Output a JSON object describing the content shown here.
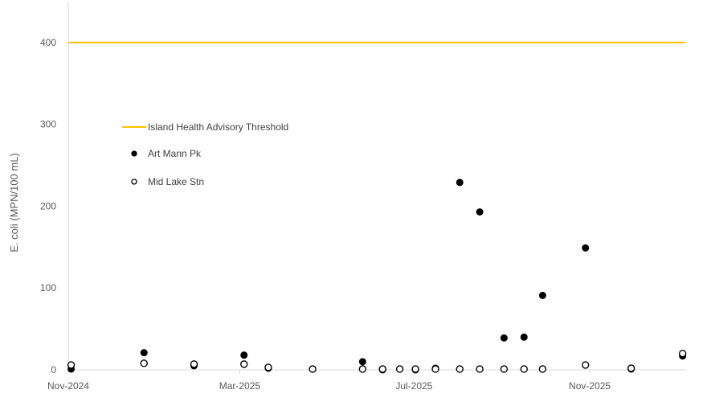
{
  "chart_data": {
    "type": "scatter",
    "title": "",
    "ylabel": "E. coli (MPN/100 mL)",
    "xlabel": "",
    "x_axis_type": "date",
    "xlim": [
      "2024-11-01",
      "2026-01-08"
    ],
    "ylim": [
      0,
      450
    ],
    "y_ticks": [
      0,
      100,
      200,
      300,
      400
    ],
    "x_ticks": [
      {
        "date": "2024-11-01",
        "label": "Nov-2024"
      },
      {
        "date": "2025-03-01",
        "label": "Mar-2025"
      },
      {
        "date": "2025-07-01",
        "label": "Jul-2025"
      },
      {
        "date": "2025-11-01",
        "label": "Nov-2025"
      }
    ],
    "grid": false,
    "legend_position": "upper-left",
    "threshold": {
      "name": "Island Health Advisory Threshold",
      "value": 400,
      "color": "#FFC000"
    },
    "series": [
      {
        "name": "Art Mann Pk",
        "marker": "filled-circle",
        "color": "#000000",
        "points": [
          {
            "x": "2024-11-03",
            "y": 1
          },
          {
            "x": "2024-12-24",
            "y": 21
          },
          {
            "x": "2025-01-28",
            "y": 5
          },
          {
            "x": "2025-03-04",
            "y": 18
          },
          {
            "x": "2025-03-21",
            "y": 2
          },
          {
            "x": "2025-04-21",
            "y": 1
          },
          {
            "x": "2025-05-26",
            "y": 10
          },
          {
            "x": "2025-06-09",
            "y": 0
          },
          {
            "x": "2025-06-21",
            "y": 1
          },
          {
            "x": "2025-07-02",
            "y": 0
          },
          {
            "x": "2025-07-16",
            "y": 2
          },
          {
            "x": "2025-08-02",
            "y": 229
          },
          {
            "x": "2025-08-16",
            "y": 193
          },
          {
            "x": "2025-09-02",
            "y": 39
          },
          {
            "x": "2025-09-16",
            "y": 40
          },
          {
            "x": "2025-09-29",
            "y": 91
          },
          {
            "x": "2025-10-29",
            "y": 149
          },
          {
            "x": "2025-11-30",
            "y": 1
          },
          {
            "x": "2026-01-05",
            "y": 17
          }
        ]
      },
      {
        "name": "Mid Lake Stn",
        "marker": "open-circle",
        "color": "#000000",
        "points": [
          {
            "x": "2024-11-03",
            "y": 6
          },
          {
            "x": "2024-12-24",
            "y": 8
          },
          {
            "x": "2025-01-28",
            "y": 7
          },
          {
            "x": "2025-03-04",
            "y": 7
          },
          {
            "x": "2025-03-21",
            "y": 3
          },
          {
            "x": "2025-04-21",
            "y": 1
          },
          {
            "x": "2025-05-26",
            "y": 1
          },
          {
            "x": "2025-06-09",
            "y": 1
          },
          {
            "x": "2025-06-21",
            "y": 1
          },
          {
            "x": "2025-07-02",
            "y": 1
          },
          {
            "x": "2025-07-16",
            "y": 1
          },
          {
            "x": "2025-08-02",
            "y": 1
          },
          {
            "x": "2025-08-16",
            "y": 1
          },
          {
            "x": "2025-09-02",
            "y": 1
          },
          {
            "x": "2025-09-16",
            "y": 1
          },
          {
            "x": "2025-09-29",
            "y": 1
          },
          {
            "x": "2025-10-29",
            "y": 6
          },
          {
            "x": "2025-11-30",
            "y": 2
          },
          {
            "x": "2026-01-05",
            "y": 20
          }
        ]
      }
    ]
  }
}
